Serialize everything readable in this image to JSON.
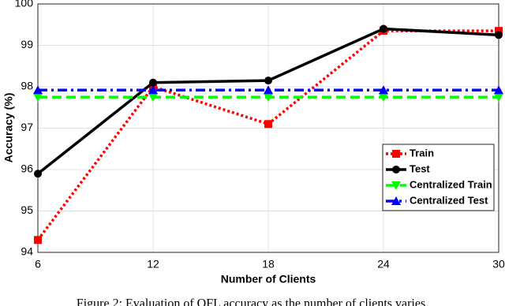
{
  "chart_data": {
    "type": "line",
    "x_label": "Number of Clients",
    "y_label": "Accuracy (%)",
    "x": [
      6,
      12,
      18,
      24,
      30
    ],
    "xlim": [
      6,
      30
    ],
    "xticks": [
      6,
      12,
      18,
      24,
      30
    ],
    "ylim": [
      94,
      100
    ],
    "yticks": [
      94,
      95,
      96,
      97,
      98,
      99,
      100
    ],
    "grid": true,
    "legend": "lower right",
    "series": [
      {
        "name": "Train",
        "color": "#ff0000",
        "dash": "dotted",
        "marker": "square",
        "values": [
          94.3,
          98.0,
          97.1,
          99.35,
          99.35
        ]
      },
      {
        "name": "Test",
        "color": "#000000",
        "dash": "solid",
        "marker": "circle",
        "values": [
          95.9,
          98.1,
          98.15,
          99.4,
          99.25
        ]
      },
      {
        "name": "Centralized Train",
        "color": "#00ff00",
        "dash": "dashed",
        "marker": "triangle-down",
        "values": [
          97.75,
          97.75,
          97.75,
          97.75,
          97.75
        ]
      },
      {
        "name": "Centralized Test",
        "color": "#0000ff",
        "dash": "dashdot",
        "marker": "triangle-up",
        "values": [
          97.92,
          97.92,
          97.92,
          97.92,
          97.92
        ]
      }
    ],
    "caption": "Figure 2: Evaluation of QFL accuracy as the number of clients varies."
  }
}
